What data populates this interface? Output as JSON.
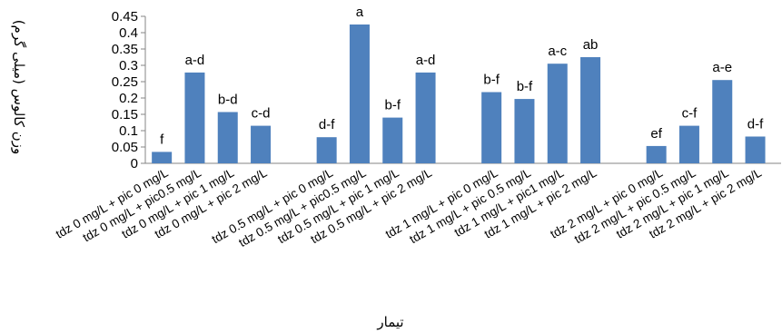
{
  "chart_data": {
    "type": "bar",
    "title": "",
    "xlabel": "تیمار",
    "ylabel": "وزن کالوس (میلی گرم)",
    "ylim": [
      0,
      0.45
    ],
    "yticks": [
      "0",
      "0.05",
      "0.1",
      "0.15",
      "0.2",
      "0.25",
      "0.3",
      "0.35",
      "0.4",
      "0.45"
    ],
    "grid": false,
    "legend": "none",
    "bar_color": "#4F81BD",
    "groups": [
      {
        "categories": [
          "tdz 0 mg/L + pic 0 mg/L",
          "tdz 0 mg/L + pic0.5 mg/L",
          "tdz 0 mg/L + pic 1 mg/L",
          "tdz 0 mg/L + pic 2 mg/L"
        ],
        "values": [
          0.035,
          0.278,
          0.157,
          0.115
        ],
        "labels": [
          "f",
          "a-d",
          "b-d",
          "c-d"
        ]
      },
      {
        "categories": [
          "tdz 0.5 mg/L + pic 0 mg/L",
          "tdz 0.5 mg/L + pic0.5 mg/L",
          "tdz 0.5 mg/L + pic 1 mg/L",
          "tdz 0.5 mg/L + pic 2 mg/L"
        ],
        "values": [
          0.08,
          0.425,
          0.14,
          0.278
        ],
        "labels": [
          "d-f",
          "a",
          "b-f",
          "a-d"
        ]
      },
      {
        "categories": [
          "tdz 1 mg/L + pic 0 mg/L",
          "tdz 1 mg/L + pic 0.5 mg/L",
          "tdz 1 mg/L + pic1 mg/L",
          "tdz 1 mg/L + pic 2 mg/L"
        ],
        "values": [
          0.218,
          0.197,
          0.305,
          0.325
        ],
        "labels": [
          "b-f",
          "b-f",
          "a-c",
          "ab"
        ]
      },
      {
        "categories": [
          "tdz 2 mg/L + pic 0 mg/L",
          "tdz 2 mg/L + pic 0.5 mg/L",
          "tdz 2 mg/L + pic 1 mg/L",
          "tdz 2 mg/L + pic 2 mg/L"
        ],
        "values": [
          0.053,
          0.115,
          0.255,
          0.082
        ],
        "labels": [
          "ef",
          "c-f",
          "a-e",
          "d-f"
        ]
      }
    ]
  }
}
